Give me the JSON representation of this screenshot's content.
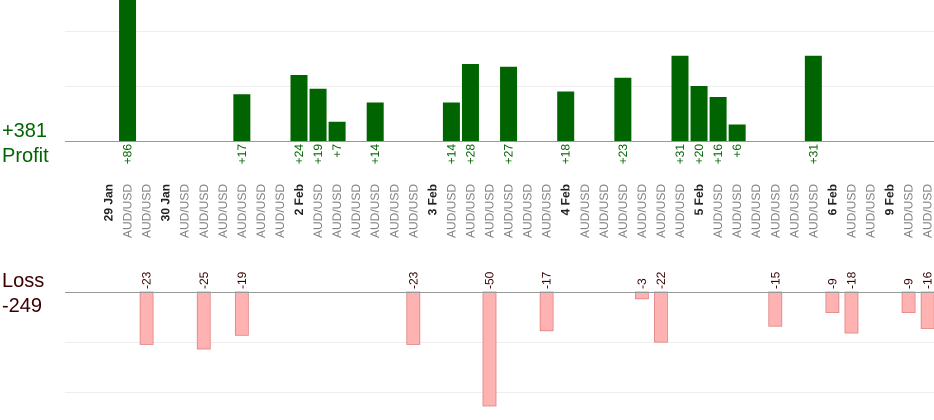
{
  "summary": {
    "profit_label": "Profit",
    "profit_total": "+381",
    "loss_label": "Loss",
    "loss_total": "-249"
  },
  "colors": {
    "profit_bar": "#006400",
    "loss_bar": "#ffb2b2",
    "loss_bar_edge": "#e08080",
    "profit_text": "#006400",
    "loss_text": "#3a0000",
    "axis_line": "#999999",
    "grid_line": "#eeeeee",
    "trade_label": "#808080",
    "date_label": "#222222"
  },
  "chart_data": {
    "type": "bar",
    "pair": "AUD/USD",
    "dates": [
      {
        "label": "29 Jan",
        "slot": 0
      },
      {
        "label": "30 Jan",
        "slot": 3
      },
      {
        "label": "2 Feb",
        "slot": 10
      },
      {
        "label": "3 Feb",
        "slot": 17
      },
      {
        "label": "4 Feb",
        "slot": 24
      },
      {
        "label": "5 Feb",
        "slot": 31
      },
      {
        "label": "6 Feb",
        "slot": 38
      },
      {
        "label": "9 Feb",
        "slot": 41
      }
    ],
    "profit": [
      {
        "slot": 1,
        "value": 86,
        "label": "+86"
      },
      {
        "slot": 7,
        "value": 17,
        "label": "+17"
      },
      {
        "slot": 10,
        "value": 24,
        "label": "+24"
      },
      {
        "slot": 11,
        "value": 19,
        "label": "+19"
      },
      {
        "slot": 12,
        "value": 7,
        "label": "+7"
      },
      {
        "slot": 14,
        "value": 14,
        "label": "+14"
      },
      {
        "slot": 18,
        "value": 14,
        "label": "+14"
      },
      {
        "slot": 19,
        "value": 28,
        "label": "+28"
      },
      {
        "slot": 21,
        "value": 27,
        "label": "+27"
      },
      {
        "slot": 24,
        "value": 18,
        "label": "+18"
      },
      {
        "slot": 27,
        "value": 23,
        "label": "+23"
      },
      {
        "slot": 30,
        "value": 31,
        "label": "+31"
      },
      {
        "slot": 31,
        "value": 20,
        "label": "+20"
      },
      {
        "slot": 32,
        "value": 16,
        "label": "+16"
      },
      {
        "slot": 33,
        "value": 6,
        "label": "+6"
      },
      {
        "slot": 37,
        "value": 31,
        "label": "+31"
      }
    ],
    "loss": [
      {
        "slot": 2,
        "value": -23,
        "label": "-23"
      },
      {
        "slot": 5,
        "value": -25,
        "label": "-25"
      },
      {
        "slot": 7,
        "value": -19,
        "label": "-19"
      },
      {
        "slot": 16,
        "value": -23,
        "label": "-23"
      },
      {
        "slot": 20,
        "value": -50,
        "label": "-50"
      },
      {
        "slot": 23,
        "value": -17,
        "label": "-17"
      },
      {
        "slot": 28,
        "value": -3,
        "label": "-3"
      },
      {
        "slot": 29,
        "value": -22,
        "label": "-22"
      },
      {
        "slot": 35,
        "value": -15,
        "label": "-15"
      },
      {
        "slot": 38,
        "value": -9,
        "label": "-9"
      },
      {
        "slot": 39,
        "value": -18,
        "label": "-18"
      },
      {
        "slot": 42,
        "value": -9,
        "label": "-9"
      },
      {
        "slot": 43,
        "value": -16,
        "label": "-16"
      }
    ],
    "grid": true
  }
}
